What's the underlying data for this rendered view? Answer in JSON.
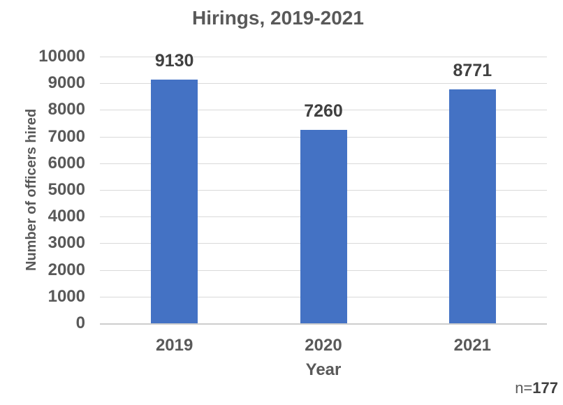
{
  "chart_data": {
    "type": "bar",
    "title": "Hirings, 2019-2021",
    "xlabel": "Year",
    "ylabel": "Number of officers hired",
    "categories": [
      "2019",
      "2020",
      "2021"
    ],
    "values": [
      9130,
      7260,
      8771
    ],
    "data_labels": [
      "9130",
      "7260",
      "8771"
    ],
    "ylim": [
      0,
      10000
    ],
    "ytick_step": 1000,
    "yticks": [
      0,
      1000,
      2000,
      3000,
      4000,
      5000,
      6000,
      7000,
      8000,
      9000,
      10000
    ],
    "grid": true,
    "legend_position": "none",
    "bar_color": "#4472C4",
    "annotation": {
      "prefix": "n=",
      "value": "177"
    }
  },
  "colors": {
    "bar": "#4472C4",
    "title_text": "#595959",
    "tick_text": "#595959",
    "data_label_text": "#404040",
    "gridline": "#D9D9D9",
    "axis_line": "#CDCDCD",
    "background": "#FFFFFF"
  }
}
